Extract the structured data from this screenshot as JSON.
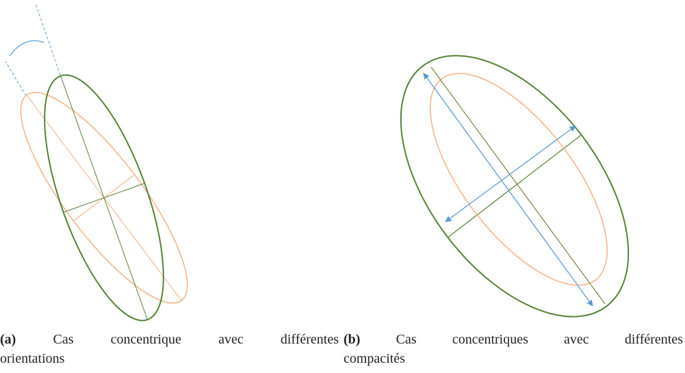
{
  "figures": [
    {
      "label": "(a)",
      "lines": [
        "Cas concentrique avec différentes",
        "orientations"
      ]
    },
    {
      "label": "(b)",
      "lines": [
        "Cas concentriques avec différentes",
        "compacités"
      ]
    }
  ]
}
